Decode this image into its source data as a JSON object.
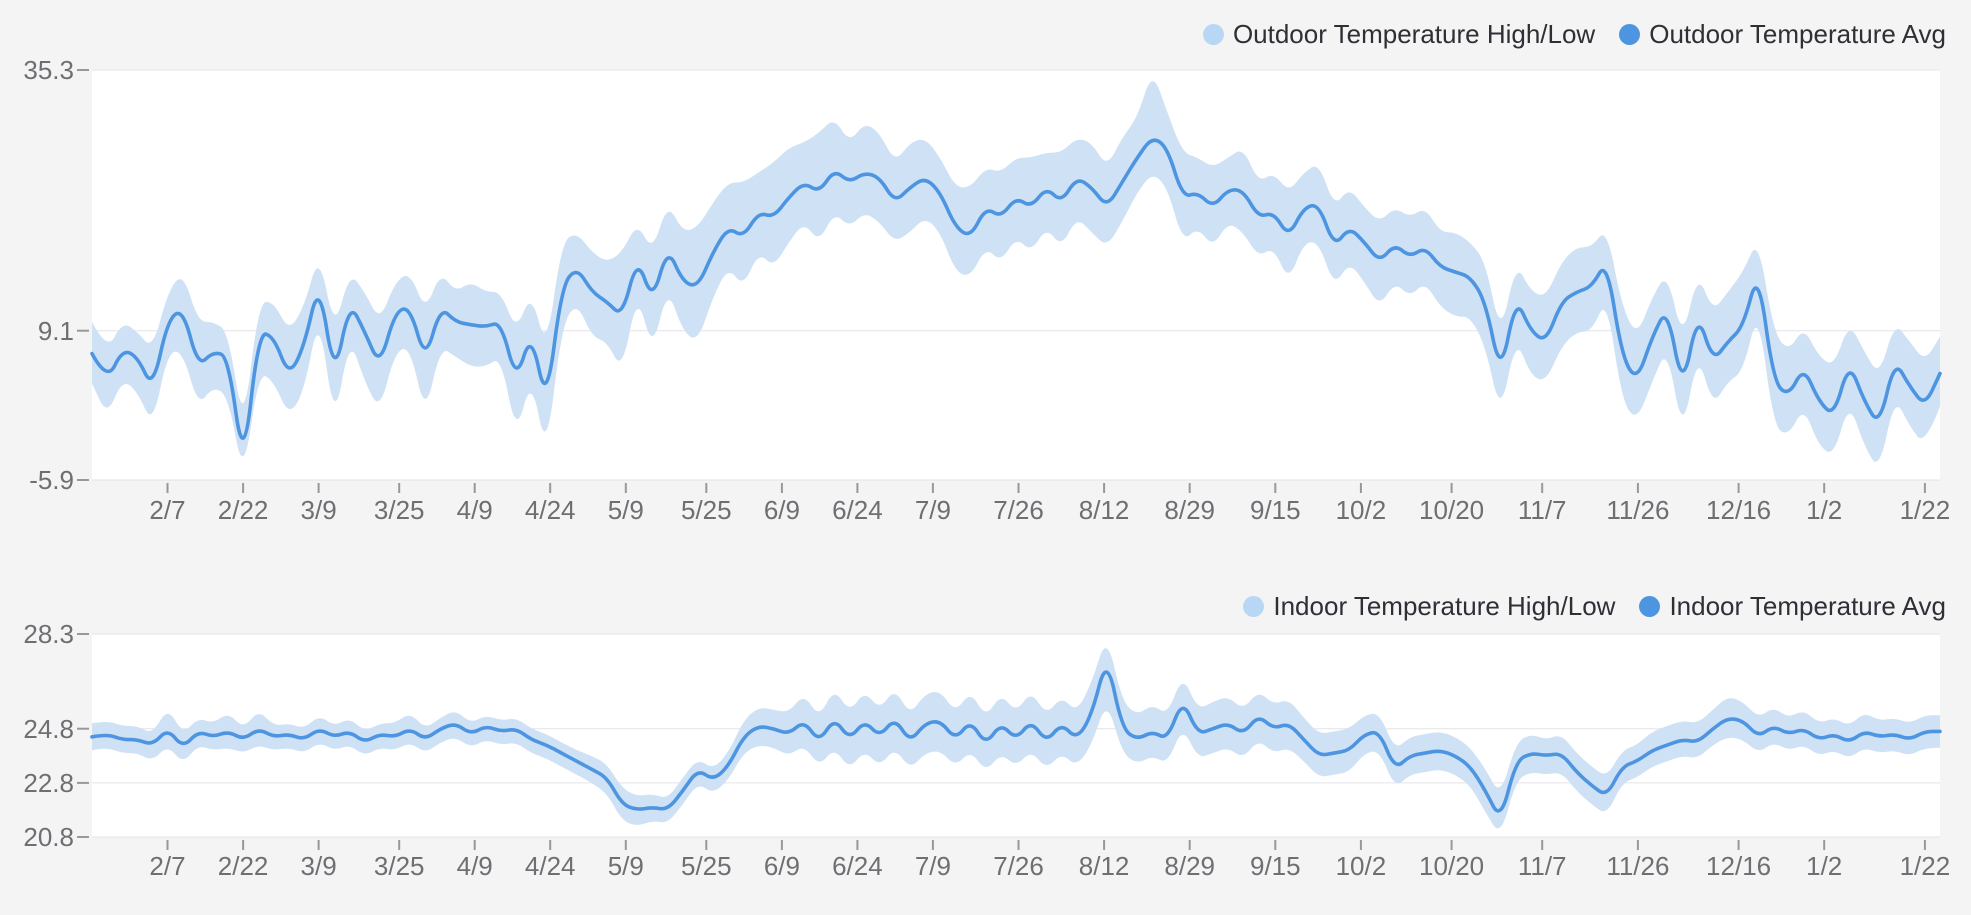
{
  "page": {
    "background": "#f4f4f5",
    "plot_background": "#ffffff"
  },
  "colors": {
    "avg_line": "#4d95e1",
    "band_fill": "#cfe2f5",
    "legend_band_dot": "#b7d7f4",
    "legend_avg_dot": "#4d95e1",
    "grid_line": "#e4e4e7",
    "tick_mark": "#98989c",
    "axis_label": "#6f6f73",
    "legend_text": "#2f2f36"
  },
  "chart_data": [
    {
      "type": "line",
      "title": "Outdoor Temperature",
      "legend_position": "top-right",
      "grid": true,
      "y_ticks": [
        35.3,
        9.1,
        -5.9
      ],
      "ylim": [
        -5.9,
        35.3
      ],
      "span_days": 367,
      "x_tick_labels": [
        "2/7",
        "2/22",
        "3/9",
        "3/25",
        "4/9",
        "4/24",
        "5/9",
        "5/25",
        "6/9",
        "6/24",
        "7/9",
        "7/26",
        "8/12",
        "8/29",
        "9/15",
        "10/2",
        "10/20",
        "11/7",
        "11/26",
        "12/16",
        "1/2",
        "1/22"
      ],
      "x_tick_days": [
        15,
        30,
        45,
        61,
        76,
        91,
        106,
        122,
        137,
        152,
        167,
        184,
        201,
        218,
        235,
        252,
        270,
        288,
        307,
        327,
        344,
        364
      ],
      "series": [
        {
          "name": "Outdoor Temperature High/Low",
          "type": "band",
          "high": [
            10.0,
            7.0,
            10.0,
            9.0,
            7.2,
            13.0,
            15.0,
            10.0,
            10.0,
            9.0,
            -1.0,
            12.0,
            12.0,
            9.0,
            11.5,
            17.0,
            9.0,
            15.0,
            13.0,
            10.0,
            14.0,
            15.0,
            11.0,
            15.0,
            13.0,
            14.0,
            13.0,
            13.0,
            9.0,
            13.0,
            7.0,
            18.0,
            19.0,
            17.0,
            16.0,
            17.0,
            20.0,
            17.0,
            22.0,
            19.0,
            19.5,
            22.0,
            24.0,
            24.0,
            25.0,
            26.0,
            27.5,
            28.0,
            29.0,
            30.5,
            28.0,
            30.0,
            29.0,
            26.0,
            28.0,
            28.5,
            26.5,
            23.5,
            23.5,
            25.5,
            25.0,
            26.5,
            26.5,
            27.0,
            27.0,
            28.5,
            28.0,
            25.5,
            28.5,
            30.5,
            35.3,
            31.0,
            27.0,
            26.5,
            25.5,
            26.5,
            27.5,
            24.0,
            25.0,
            23.0,
            25.0,
            26.0,
            21.5,
            23.5,
            21.5,
            20.0,
            21.5,
            20.5,
            21.5,
            19.0,
            19.0,
            18.0,
            16.0,
            8.5,
            16.0,
            13.0,
            12.5,
            16.0,
            17.5,
            17.5,
            19.5,
            11.5,
            8.5,
            12.5,
            15.0,
            8.0,
            15.0,
            11.0,
            13.0,
            15.0,
            18.5,
            9.0,
            7.0,
            9.5,
            6.5,
            5.5,
            10.0,
            7.0,
            4.5,
            10.0,
            8.0,
            6.0,
            8.5
          ],
          "low": [
            3.8,
            0.5,
            4.2,
            3.0,
            -0.5,
            7.0,
            7.0,
            1.5,
            3.5,
            2.5,
            -5.9,
            5.0,
            4.0,
            0.5,
            3.0,
            11.0,
            -0.5,
            8.5,
            4.0,
            1.0,
            7.0,
            7.5,
            0.5,
            7.5,
            6.5,
            5.5,
            5.5,
            6.5,
            -1.5,
            4.5,
            -3.5,
            9.5,
            12.0,
            8.5,
            8.0,
            5.0,
            13.0,
            7.0,
            13.5,
            9.0,
            8.0,
            12.5,
            15.5,
            13.5,
            17.0,
            15.5,
            18.0,
            20.0,
            18.0,
            21.0,
            19.5,
            21.0,
            20.0,
            18.0,
            19.0,
            20.5,
            19.0,
            15.0,
            14.5,
            17.5,
            16.0,
            18.5,
            17.0,
            19.5,
            17.5,
            20.5,
            19.0,
            17.5,
            20.0,
            23.0,
            25.0,
            23.5,
            18.0,
            19.5,
            17.5,
            20.0,
            19.0,
            16.5,
            17.5,
            14.0,
            18.0,
            18.0,
            13.5,
            16.0,
            14.0,
            11.5,
            14.0,
            12.5,
            14.0,
            11.5,
            10.5,
            10.5,
            7.5,
            0.5,
            8.5,
            4.5,
            4.0,
            7.5,
            9.0,
            9.0,
            12.5,
            2.0,
            0.0,
            4.0,
            7.5,
            -1.5,
            7.0,
            1.5,
            4.0,
            5.0,
            11.5,
            -0.5,
            -1.5,
            1.5,
            -2.5,
            -3.5,
            2.0,
            -2.5,
            -5.0,
            2.5,
            -0.5,
            -2.5,
            1.5
          ]
        },
        {
          "name": "Outdoor Temperature Avg",
          "type": "line",
          "values": [
            6.8,
            4.0,
            7.2,
            6.5,
            3.2,
            10.2,
            11.3,
            5.5,
            7.0,
            6.5,
            -4.8,
            9.0,
            8.5,
            4.5,
            7.5,
            14.2,
            4.2,
            12.0,
            9.0,
            5.5,
            11.0,
            11.5,
            6.0,
            11.5,
            10.0,
            9.7,
            9.5,
            10.0,
            4.0,
            9.0,
            1.5,
            13.5,
            15.5,
            13.0,
            12.0,
            10.5,
            16.5,
            12.0,
            17.5,
            14.0,
            13.5,
            17.0,
            19.5,
            18.5,
            21.0,
            20.5,
            22.5,
            24.0,
            23.0,
            25.3,
            24.0,
            25.0,
            24.5,
            22.0,
            23.5,
            24.5,
            23.0,
            19.5,
            18.5,
            21.5,
            20.5,
            22.5,
            21.5,
            23.5,
            22.0,
            24.5,
            23.5,
            21.5,
            24.0,
            26.5,
            28.6,
            27.5,
            22.5,
            23.0,
            21.5,
            23.3,
            23.2,
            20.5,
            21.0,
            18.5,
            21.5,
            21.8,
            17.5,
            19.5,
            18.0,
            16.0,
            17.8,
            16.5,
            17.5,
            15.5,
            15.0,
            14.5,
            12.0,
            4.5,
            12.5,
            9.0,
            8.0,
            12.0,
            13.0,
            13.5,
            16.2,
            6.5,
            4.0,
            8.5,
            11.5,
            3.0,
            11.0,
            6.0,
            8.0,
            9.5,
            15.3,
            4.0,
            2.5,
            5.5,
            2.0,
            0.5,
            6.0,
            2.0,
            -0.5,
            6.2,
            3.5,
            1.5,
            4.8
          ]
        }
      ]
    },
    {
      "type": "line",
      "title": "Indoor Temperature",
      "legend_position": "top-right",
      "grid": true,
      "y_ticks": [
        28.3,
        24.8,
        22.8,
        20.8
      ],
      "ylim": [
        20.8,
        28.3
      ],
      "span_days": 367,
      "x_tick_labels": [
        "2/7",
        "2/22",
        "3/9",
        "3/25",
        "4/9",
        "4/24",
        "5/9",
        "5/25",
        "6/9",
        "6/24",
        "7/9",
        "7/26",
        "8/12",
        "8/29",
        "9/15",
        "10/2",
        "10/20",
        "11/7",
        "11/26",
        "12/16",
        "1/2",
        "1/22"
      ],
      "x_tick_days": [
        15,
        30,
        45,
        61,
        76,
        91,
        106,
        122,
        137,
        152,
        167,
        184,
        201,
        218,
        235,
        252,
        270,
        288,
        307,
        327,
        344,
        364
      ],
      "series": [
        {
          "name": "Indoor Temperature High/Low",
          "type": "band",
          "high": [
            25.0,
            25.1,
            24.9,
            24.9,
            24.6,
            25.6,
            24.6,
            25.2,
            25.0,
            25.4,
            24.8,
            25.5,
            24.9,
            25.0,
            24.8,
            25.3,
            24.9,
            25.2,
            24.7,
            25.0,
            25.0,
            25.4,
            24.8,
            25.2,
            25.5,
            25.0,
            25.3,
            25.1,
            25.2,
            24.8,
            24.6,
            24.3,
            24.0,
            23.8,
            23.5,
            22.6,
            22.3,
            22.4,
            22.2,
            23.0,
            23.7,
            23.3,
            23.9,
            25.1,
            25.6,
            25.5,
            25.4,
            26.1,
            25.2,
            26.3,
            25.4,
            26.2,
            25.5,
            26.3,
            25.3,
            26.1,
            26.2,
            25.4,
            26.2,
            25.2,
            26.1,
            25.4,
            26.2,
            25.3,
            26.0,
            25.4,
            26.5,
            28.3,
            25.8,
            25.3,
            25.7,
            25.3,
            26.8,
            25.5,
            25.8,
            26.0,
            25.5,
            26.2,
            25.7,
            25.9,
            25.2,
            24.6,
            24.7,
            24.8,
            25.3,
            25.4,
            24.0,
            24.5,
            24.6,
            24.7,
            24.5,
            24.1,
            23.3,
            22.3,
            24.3,
            24.6,
            24.4,
            24.6,
            23.9,
            23.4,
            23.0,
            24.0,
            24.2,
            24.7,
            24.9,
            25.1,
            25.0,
            25.5,
            26.0,
            25.8,
            25.2,
            25.6,
            25.2,
            25.5,
            25.0,
            25.2,
            24.9,
            25.4,
            25.1,
            25.2,
            25.0,
            25.3,
            25.3
          ],
          "low": [
            24.0,
            24.1,
            23.9,
            23.9,
            23.6,
            24.2,
            23.5,
            24.2,
            24.0,
            24.1,
            23.9,
            24.2,
            24.0,
            24.1,
            23.9,
            24.3,
            24.0,
            24.2,
            23.8,
            24.1,
            24.0,
            24.3,
            23.9,
            24.3,
            24.5,
            24.1,
            24.4,
            24.2,
            24.3,
            23.9,
            23.7,
            23.4,
            23.1,
            22.8,
            22.4,
            21.4,
            21.2,
            21.4,
            21.3,
            22.0,
            22.8,
            22.4,
            22.9,
            23.9,
            24.2,
            24.1,
            23.8,
            24.2,
            23.4,
            24.1,
            23.3,
            24.0,
            23.4,
            24.1,
            23.3,
            23.9,
            24.0,
            23.4,
            24.0,
            23.2,
            23.9,
            23.4,
            24.0,
            23.3,
            23.9,
            23.4,
            24.2,
            25.9,
            23.9,
            23.5,
            23.8,
            23.5,
            24.9,
            23.7,
            23.9,
            24.1,
            23.7,
            24.4,
            23.9,
            24.1,
            23.6,
            23.0,
            23.1,
            23.2,
            23.9,
            24.0,
            22.6,
            23.1,
            23.2,
            23.3,
            23.1,
            22.7,
            21.7,
            20.8,
            22.9,
            23.2,
            23.1,
            23.2,
            22.5,
            22.0,
            21.6,
            22.8,
            23.0,
            23.4,
            23.6,
            23.8,
            23.7,
            24.2,
            24.5,
            24.4,
            23.9,
            24.3,
            24.0,
            24.2,
            23.8,
            24.0,
            23.7,
            24.1,
            23.9,
            24.0,
            23.8,
            24.1,
            24.1
          ]
        },
        {
          "name": "Indoor Temperature Avg",
          "type": "line",
          "values": [
            24.5,
            24.6,
            24.4,
            24.4,
            24.2,
            24.8,
            24.1,
            24.7,
            24.5,
            24.7,
            24.4,
            24.8,
            24.5,
            24.6,
            24.4,
            24.8,
            24.5,
            24.7,
            24.3,
            24.6,
            24.5,
            24.8,
            24.4,
            24.8,
            25.0,
            24.6,
            24.9,
            24.7,
            24.8,
            24.4,
            24.2,
            23.9,
            23.6,
            23.3,
            23.0,
            22.0,
            21.8,
            21.9,
            21.8,
            22.5,
            23.3,
            22.9,
            23.4,
            24.5,
            24.9,
            24.8,
            24.6,
            25.1,
            24.3,
            25.2,
            24.4,
            25.1,
            24.5,
            25.2,
            24.3,
            25.0,
            25.1,
            24.4,
            25.1,
            24.2,
            25.0,
            24.4,
            25.1,
            24.3,
            25.0,
            24.4,
            25.3,
            27.5,
            24.8,
            24.4,
            24.7,
            24.4,
            25.9,
            24.6,
            24.8,
            25.0,
            24.6,
            25.3,
            24.8,
            25.0,
            24.4,
            23.8,
            23.9,
            24.0,
            24.6,
            24.7,
            23.3,
            23.8,
            23.9,
            24.0,
            23.8,
            23.4,
            22.5,
            21.4,
            23.6,
            23.9,
            23.8,
            23.9,
            23.2,
            22.7,
            22.3,
            23.4,
            23.6,
            24.0,
            24.2,
            24.4,
            24.3,
            24.8,
            25.2,
            25.1,
            24.5,
            24.9,
            24.6,
            24.8,
            24.4,
            24.6,
            24.3,
            24.7,
            24.5,
            24.6,
            24.4,
            24.7,
            24.7
          ]
        }
      ]
    }
  ]
}
